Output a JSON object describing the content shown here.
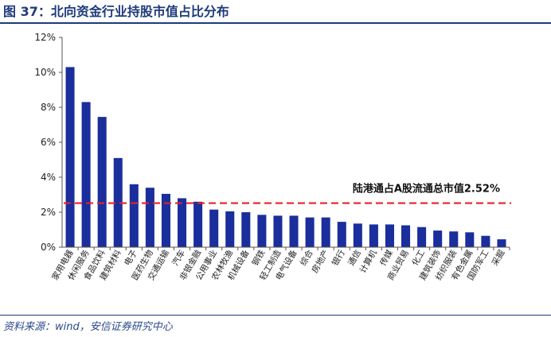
{
  "figure": {
    "title": "图 37：北向资金行业持股市值占比分布",
    "source": "资料来源：wind，安信证券研究中心"
  },
  "chart_data": {
    "type": "bar",
    "categories": [
      "家用电器",
      "休闲服务",
      "食品饮料",
      "建筑材料",
      "电子",
      "医药生物",
      "交通运输",
      "汽车",
      "非银金融",
      "公用事业",
      "农林牧渔",
      "机械设备",
      "钢铁",
      "轻工制造",
      "电气设备",
      "综合",
      "房地产",
      "银行",
      "通信",
      "计算机",
      "传媒",
      "商业贸易",
      "化工",
      "建筑装饰",
      "纺织服装",
      "有色金属",
      "国防军工",
      "采掘"
    ],
    "values": [
      10.3,
      8.3,
      7.45,
      5.1,
      3.6,
      3.4,
      3.05,
      2.8,
      2.6,
      2.15,
      2.05,
      2.0,
      1.85,
      1.8,
      1.8,
      1.7,
      1.7,
      1.45,
      1.35,
      1.3,
      1.3,
      1.25,
      1.15,
      0.95,
      0.9,
      0.85,
      0.65,
      0.45
    ],
    "y_tick_labels": [
      "0%",
      "2%",
      "4%",
      "6%",
      "8%",
      "10%",
      "12%"
    ],
    "ylim": [
      0,
      12
    ],
    "reference_line": {
      "value": 2.52,
      "label": "陆港通占A股流通总市值2.52%",
      "color": "#e8202a",
      "style": "dashed"
    },
    "bar_color": "#1a2e9c",
    "grid": false,
    "legend": "none"
  }
}
